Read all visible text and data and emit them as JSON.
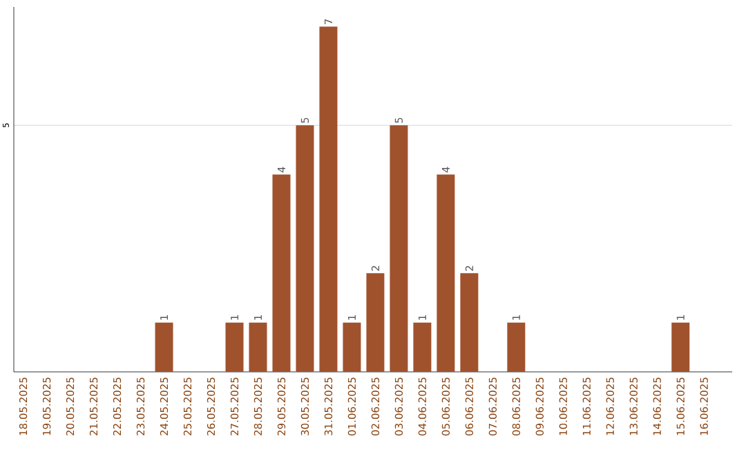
{
  "chart_data": {
    "type": "bar",
    "categories": [
      "18.05.2025",
      "19.05.2025",
      "20.05.2025",
      "21.05.2025",
      "22.05.2025",
      "23.05.2025",
      "24.05.2025",
      "25.05.2025",
      "26.05.2025",
      "27.05.2025",
      "28.05.2025",
      "29.05.2025",
      "30.05.2025",
      "31.05.2025",
      "01.06.2025",
      "02.06.2025",
      "03.06.2025",
      "04.06.2025",
      "05.06.2025",
      "06.06.2025",
      "07.06.2025",
      "08.06.2025",
      "09.06.2025",
      "10.06.2025",
      "11.06.2025",
      "12.06.2025",
      "13.06.2025",
      "14.06.2025",
      "15.06.2025",
      "16.06.2025"
    ],
    "values": [
      0,
      0,
      0,
      0,
      0,
      0,
      1,
      0,
      0,
      1,
      1,
      4,
      5,
      7,
      1,
      2,
      5,
      1,
      4,
      2,
      0,
      1,
      0,
      0,
      0,
      0,
      0,
      0,
      1,
      0
    ],
    "value_labels": [
      null,
      null,
      null,
      null,
      null,
      null,
      "1",
      null,
      null,
      "1",
      "1",
      "4",
      "5",
      "7",
      "1",
      "2",
      "5",
      "1",
      "4",
      "2",
      null,
      "1",
      null,
      null,
      null,
      null,
      null,
      null,
      "1",
      null
    ],
    "color": "#a0522d",
    "ylim": [
      0,
      7.4
    ],
    "yticks": [
      5
    ],
    "grid": "y"
  }
}
